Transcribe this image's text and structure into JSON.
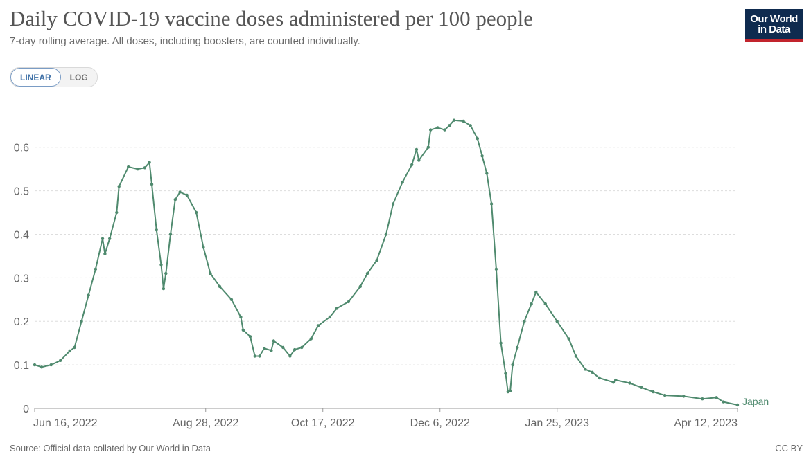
{
  "header": {
    "title": "Daily COVID-19 vaccine doses administered per 100 people",
    "subtitle": "7-day rolling average. All doses, including boosters, are counted individually.",
    "logo_line1": "Our World",
    "logo_line2": "in Data"
  },
  "scale_toggle": {
    "linear_label": "LINEAR",
    "log_label": "LOG",
    "selected": "LINEAR"
  },
  "footer": {
    "source": "Source: Official data collated by Our World in Data",
    "license": "CC BY"
  },
  "colors": {
    "series": "#4f8a6e",
    "grid": "#dddddd",
    "logo_bg": "#0f2b4f",
    "logo_accent": "#c2242d"
  },
  "chart_data": {
    "type": "line",
    "title": "Daily COVID-19 vaccine doses administered per 100 people",
    "subtitle": "7-day rolling average. All doses, including boosters, are counted individually.",
    "xlabel": "",
    "ylabel": "",
    "x_range": [
      "2022-06-16",
      "2023-04-12"
    ],
    "ylim": [
      0,
      0.66
    ],
    "y_ticks": [
      0,
      0.1,
      0.2,
      0.3,
      0.4,
      0.5,
      0.6
    ],
    "y_tick_labels": [
      "0",
      "0.1",
      "0.2",
      "0.3",
      "0.4",
      "0.5",
      "0.6"
    ],
    "x_ticks": [
      "2022-06-16",
      "2022-08-28",
      "2022-10-17",
      "2022-12-06",
      "2023-01-25",
      "2023-04-12"
    ],
    "x_tick_labels": [
      "Jun 16, 2022",
      "Aug 28, 2022",
      "Oct 17, 2022",
      "Dec 6, 2022",
      "Jan 25, 2023",
      "Apr 12, 2023"
    ],
    "grid": "horizontal dashed",
    "legend": "inline label at line end",
    "series": [
      {
        "name": "Japan",
        "points": [
          [
            "2022-06-16",
            0.1
          ],
          [
            "2022-06-19",
            0.095
          ],
          [
            "2022-06-23",
            0.1
          ],
          [
            "2022-06-27",
            0.11
          ],
          [
            "2022-07-01",
            0.132
          ],
          [
            "2022-07-03",
            0.14
          ],
          [
            "2022-07-06",
            0.2
          ],
          [
            "2022-07-09",
            0.26
          ],
          [
            "2022-07-12",
            0.32
          ],
          [
            "2022-07-15",
            0.39
          ],
          [
            "2022-07-16",
            0.355
          ],
          [
            "2022-07-18",
            0.39
          ],
          [
            "2022-07-21",
            0.45
          ],
          [
            "2022-07-22",
            0.51
          ],
          [
            "2022-07-26",
            0.555
          ],
          [
            "2022-07-30",
            0.55
          ],
          [
            "2022-08-02",
            0.553
          ],
          [
            "2022-08-04",
            0.565
          ],
          [
            "2022-08-05",
            0.515
          ],
          [
            "2022-08-07",
            0.41
          ],
          [
            "2022-08-09",
            0.33
          ],
          [
            "2022-08-10",
            0.275
          ],
          [
            "2022-08-11",
            0.31
          ],
          [
            "2022-08-13",
            0.4
          ],
          [
            "2022-08-15",
            0.48
          ],
          [
            "2022-08-17",
            0.497
          ],
          [
            "2022-08-20",
            0.49
          ],
          [
            "2022-08-24",
            0.45
          ],
          [
            "2022-08-27",
            0.37
          ],
          [
            "2022-08-30",
            0.31
          ],
          [
            "2022-09-03",
            0.28
          ],
          [
            "2022-09-08",
            0.25
          ],
          [
            "2022-09-12",
            0.21
          ],
          [
            "2022-09-13",
            0.18
          ],
          [
            "2022-09-16",
            0.165
          ],
          [
            "2022-09-18",
            0.12
          ],
          [
            "2022-09-20",
            0.12
          ],
          [
            "2022-09-22",
            0.138
          ],
          [
            "2022-09-25",
            0.133
          ],
          [
            "2022-09-26",
            0.155
          ],
          [
            "2022-09-30",
            0.14
          ],
          [
            "2022-10-03",
            0.12
          ],
          [
            "2022-10-05",
            0.135
          ],
          [
            "2022-10-08",
            0.14
          ],
          [
            "2022-10-12",
            0.16
          ],
          [
            "2022-10-15",
            0.19
          ],
          [
            "2022-10-20",
            0.21
          ],
          [
            "2022-10-23",
            0.23
          ],
          [
            "2022-10-28",
            0.245
          ],
          [
            "2022-11-02",
            0.28
          ],
          [
            "2022-11-05",
            0.31
          ],
          [
            "2022-11-09",
            0.34
          ],
          [
            "2022-11-13",
            0.4
          ],
          [
            "2022-11-16",
            0.47
          ],
          [
            "2022-11-20",
            0.52
          ],
          [
            "2022-11-24",
            0.56
          ],
          [
            "2022-11-26",
            0.595
          ],
          [
            "2022-11-27",
            0.57
          ],
          [
            "2022-12-01",
            0.6
          ],
          [
            "2022-12-02",
            0.64
          ],
          [
            "2022-12-05",
            0.645
          ],
          [
            "2022-12-08",
            0.64
          ],
          [
            "2022-12-10",
            0.65
          ],
          [
            "2022-12-12",
            0.662
          ],
          [
            "2022-12-16",
            0.66
          ],
          [
            "2022-12-19",
            0.65
          ],
          [
            "2022-12-22",
            0.62
          ],
          [
            "2022-12-24",
            0.58
          ],
          [
            "2022-12-26",
            0.54
          ],
          [
            "2022-12-28",
            0.47
          ],
          [
            "2022-12-30",
            0.32
          ],
          [
            "2023-01-01",
            0.15
          ],
          [
            "2023-01-03",
            0.08
          ],
          [
            "2023-01-04",
            0.038
          ],
          [
            "2023-01-05",
            0.04
          ],
          [
            "2023-01-06",
            0.1
          ],
          [
            "2023-01-08",
            0.14
          ],
          [
            "2023-01-11",
            0.2
          ],
          [
            "2023-01-14",
            0.24
          ],
          [
            "2023-01-16",
            0.267
          ],
          [
            "2023-01-20",
            0.24
          ],
          [
            "2023-01-25",
            0.2
          ],
          [
            "2023-01-30",
            0.16
          ],
          [
            "2023-02-02",
            0.12
          ],
          [
            "2023-02-06",
            0.09
          ],
          [
            "2023-02-09",
            0.083
          ],
          [
            "2023-02-12",
            0.07
          ],
          [
            "2023-02-18",
            0.06
          ],
          [
            "2023-02-19",
            0.065
          ],
          [
            "2023-02-25",
            0.058
          ],
          [
            "2023-03-02",
            0.048
          ],
          [
            "2023-03-07",
            0.038
          ],
          [
            "2023-03-12",
            0.03
          ],
          [
            "2023-03-20",
            0.028
          ],
          [
            "2023-03-28",
            0.022
          ],
          [
            "2023-04-03",
            0.025
          ],
          [
            "2023-04-06",
            0.015
          ],
          [
            "2023-04-12",
            0.008
          ]
        ]
      }
    ]
  }
}
